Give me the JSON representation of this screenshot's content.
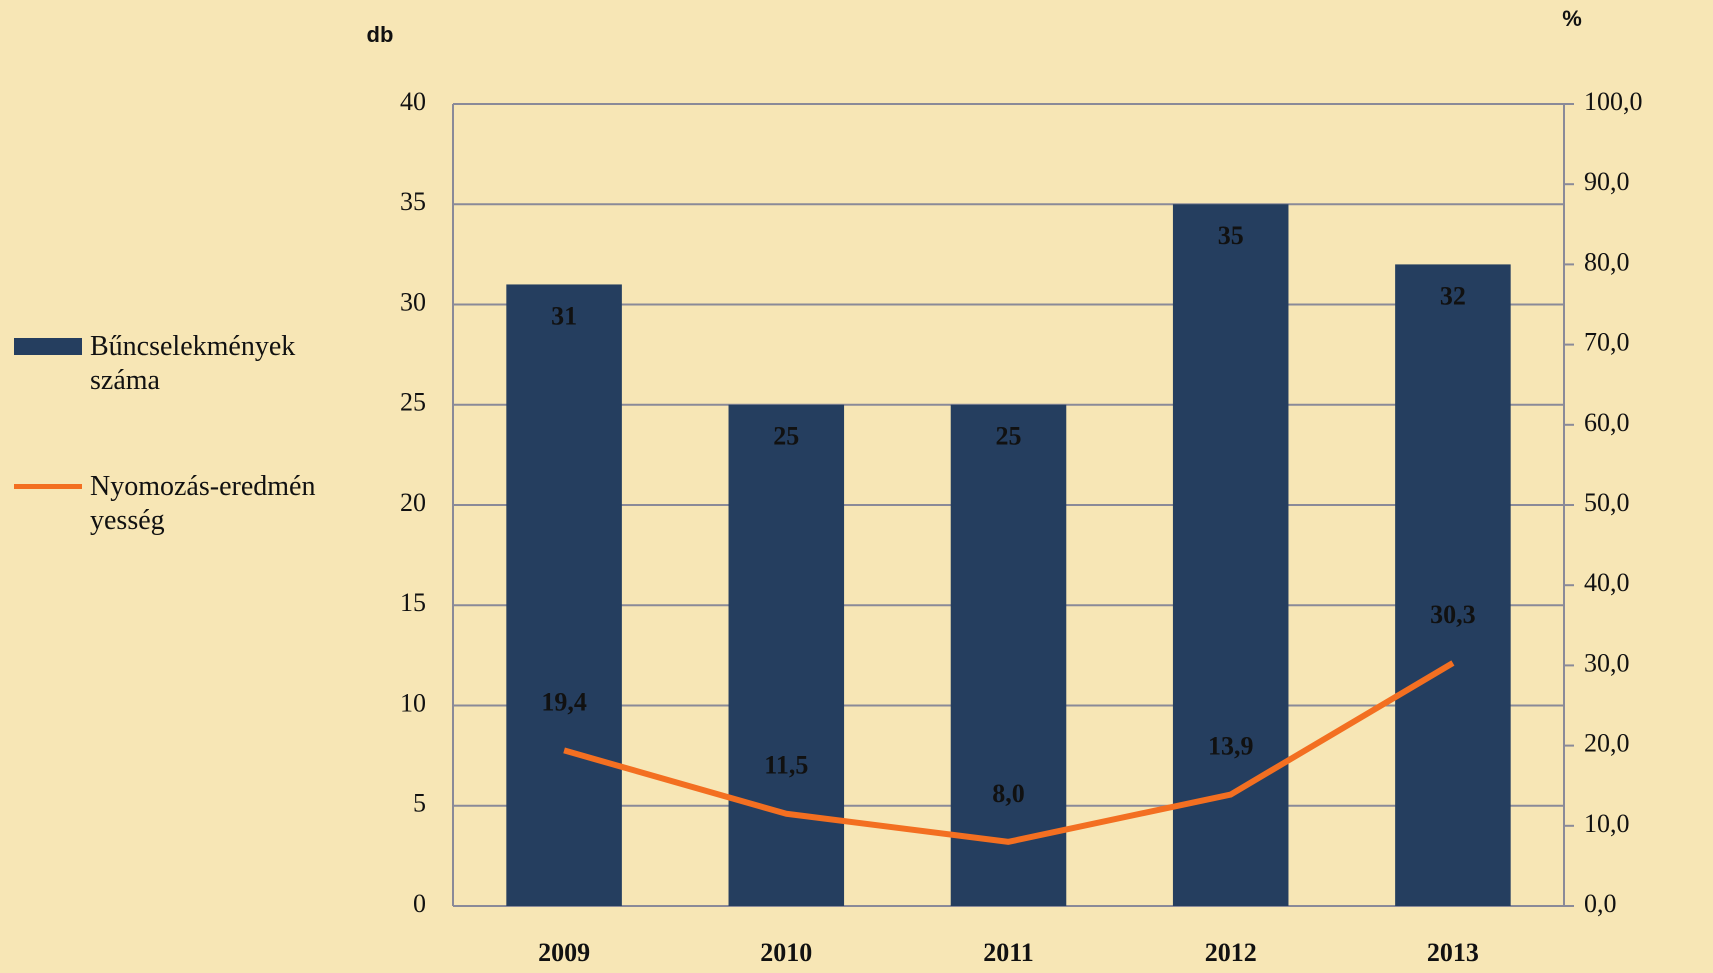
{
  "chart_data": {
    "type": "bar",
    "categories": [
      "2009",
      "2010",
      "2011",
      "2012",
      "2013"
    ],
    "series": [
      {
        "name": "Bűncselekmények száma",
        "color": "#253e5f",
        "type": "bar",
        "values": [
          31,
          25,
          25,
          35,
          32
        ]
      },
      {
        "name": "Nyomozás-eredményesség",
        "color": "#f36f21",
        "type": "line",
        "axis": "y2",
        "values": [
          19.4,
          11.5,
          8.0,
          13.9,
          30.3
        ],
        "value_labels": [
          "19,4",
          "11,5",
          "8,0",
          "13,9",
          "30,3"
        ]
      }
    ],
    "ylabel": "db",
    "y2label": "%",
    "ylim": [
      0,
      40
    ],
    "yticks": [
      0,
      5,
      10,
      15,
      20,
      25,
      30,
      35,
      40
    ],
    "y2lim": [
      0,
      100
    ],
    "y2ticks": [
      {
        "value": 0,
        "label": "0,0"
      },
      {
        "value": 10,
        "label": "10,0"
      },
      {
        "value": 20,
        "label": "20,0"
      },
      {
        "value": 30,
        "label": "30,0"
      },
      {
        "value": 40,
        "label": "40,0"
      },
      {
        "value": 50,
        "label": "50,0"
      },
      {
        "value": 60,
        "label": "60,0"
      },
      {
        "value": 70,
        "label": "70,0"
      },
      {
        "value": 80,
        "label": "80,0"
      },
      {
        "value": 90,
        "label": "90,0"
      },
      {
        "value": 100,
        "label": "100,0"
      }
    ],
    "grid": true
  }
}
